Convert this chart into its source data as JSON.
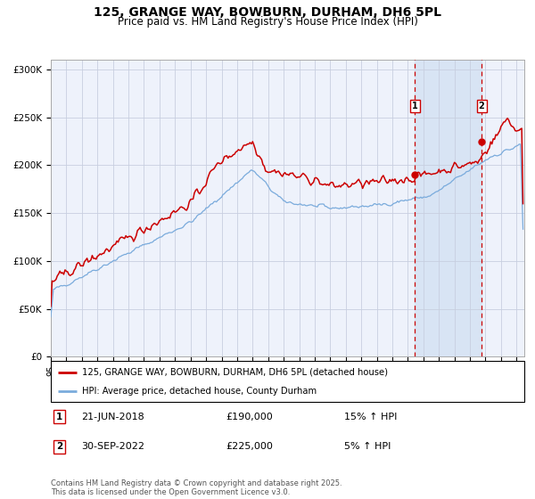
{
  "title": "125, GRANGE WAY, BOWBURN, DURHAM, DH6 5PL",
  "subtitle": "Price paid vs. HM Land Registry's House Price Index (HPI)",
  "title_fontsize": 10,
  "subtitle_fontsize": 8.5,
  "background_color": "#ffffff",
  "plot_bg_color": "#eef2fb",
  "grid_color": "#c8cfe0",
  "red_line_color": "#cc0000",
  "blue_line_color": "#7aabdc",
  "highlight_bg_color": "#d8e4f4",
  "vline_color": "#cc0000",
  "marker1_year": 2018.46,
  "marker2_year": 2022.75,
  "marker1_y": 190000,
  "marker2_y": 225000,
  "legend_line1": "125, GRANGE WAY, BOWBURN, DURHAM, DH6 5PL (detached house)",
  "legend_line2": "HPI: Average price, detached house, County Durham",
  "ann1_date": "21-JUN-2018",
  "ann1_price": "£190,000",
  "ann1_hpi": "15% ↑ HPI",
  "ann2_date": "30-SEP-2022",
  "ann2_price": "£225,000",
  "ann2_hpi": "5% ↑ HPI",
  "footer": "Contains HM Land Registry data © Crown copyright and database right 2025.\nThis data is licensed under the Open Government Licence v3.0.",
  "ylim": [
    0,
    310000
  ],
  "yticks": [
    0,
    50000,
    100000,
    150000,
    200000,
    250000,
    300000
  ],
  "ytick_labels": [
    "£0",
    "£50K",
    "£100K",
    "£150K",
    "£200K",
    "£250K",
    "£300K"
  ],
  "xmin": 1995,
  "xmax": 2025.5
}
